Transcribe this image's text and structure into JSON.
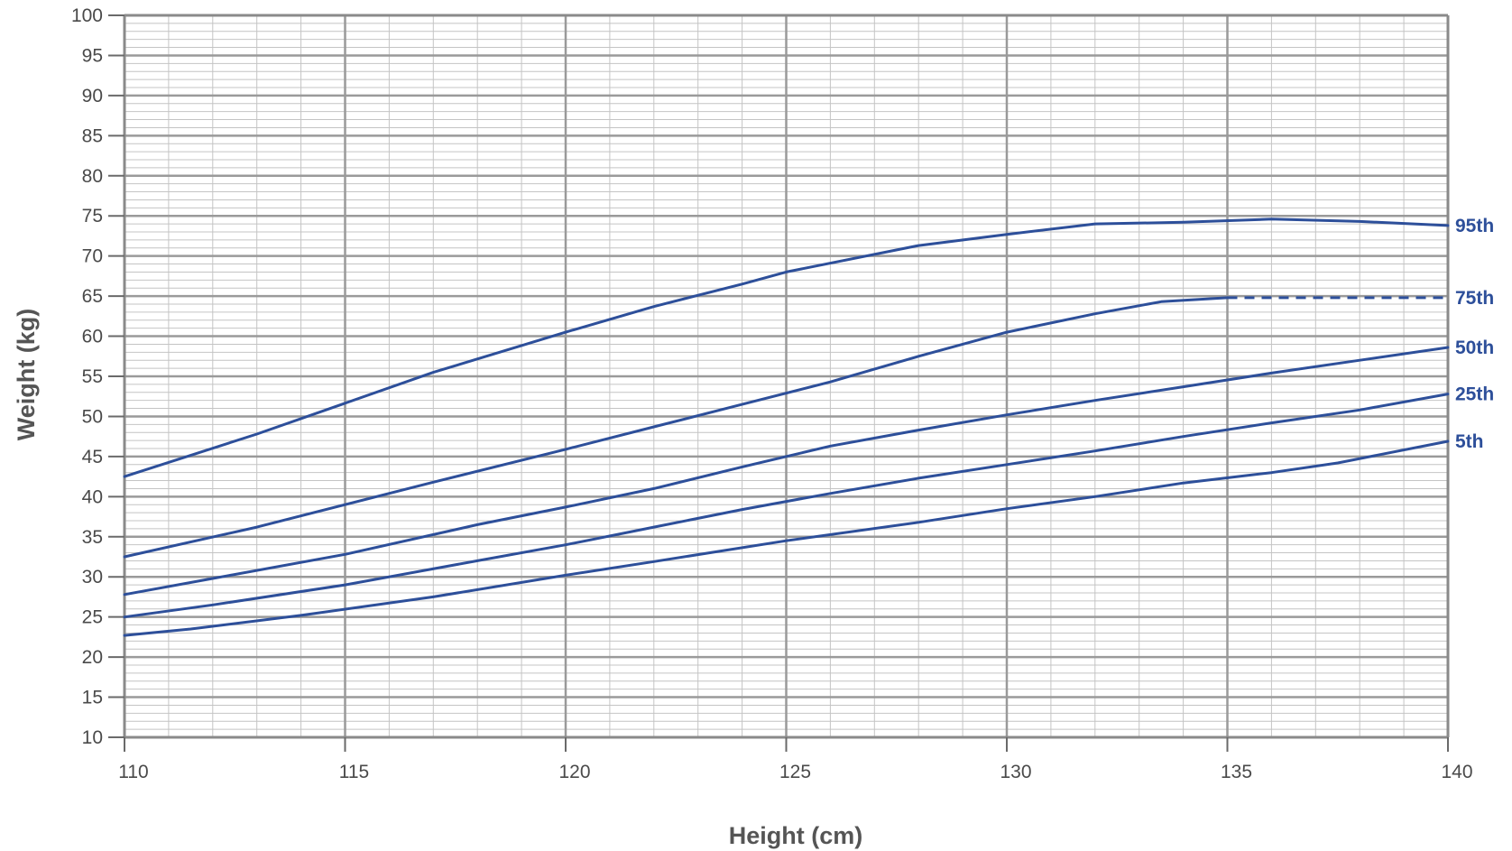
{
  "chart_data": {
    "type": "line",
    "title": "",
    "xlabel": "Height (cm)",
    "ylabel": "Weight (kg)",
    "xlim": [
      110,
      140
    ],
    "ylim": [
      10,
      100
    ],
    "x_ticks": [
      110,
      115,
      120,
      125,
      130,
      135,
      140
    ],
    "y_ticks": [
      10,
      15,
      20,
      25,
      30,
      35,
      40,
      45,
      50,
      55,
      60,
      65,
      70,
      75,
      80,
      85,
      90,
      95,
      100
    ],
    "x_minor_step": 1,
    "y_minor_step": 1,
    "grid": true,
    "legend": "end-of-line labels",
    "series_color": "#2d4f9a",
    "grid_major_color": "#9a9a9a",
    "grid_minor_color": "#c4c4c4",
    "series": [
      {
        "name": "95th",
        "points": [
          [
            110,
            42.5
          ],
          [
            113,
            47.8
          ],
          [
            117,
            55.5
          ],
          [
            120,
            60.5
          ],
          [
            122,
            63.7
          ],
          [
            124,
            66.5
          ],
          [
            125,
            68.0
          ],
          [
            128,
            71.3
          ],
          [
            130,
            72.7
          ],
          [
            132,
            74.0
          ],
          [
            134,
            74.2
          ],
          [
            136,
            74.6
          ],
          [
            138,
            74.3
          ],
          [
            140,
            73.8
          ]
        ],
        "dashed_from": null
      },
      {
        "name": "75th",
        "points": [
          [
            110,
            32.5
          ],
          [
            113,
            36.2
          ],
          [
            117,
            41.8
          ],
          [
            120,
            45.9
          ],
          [
            122,
            48.7
          ],
          [
            124,
            51.5
          ],
          [
            126,
            54.3
          ],
          [
            128,
            57.5
          ],
          [
            130,
            60.5
          ],
          [
            132,
            62.8
          ],
          [
            133.5,
            64.3
          ],
          [
            135,
            64.8
          ],
          [
            140,
            64.8
          ]
        ],
        "dashed_from": 135
      },
      {
        "name": "50th",
        "points": [
          [
            110,
            27.8
          ],
          [
            112,
            29.8
          ],
          [
            115,
            32.8
          ],
          [
            118,
            36.5
          ],
          [
            120,
            38.7
          ],
          [
            122,
            41.0
          ],
          [
            124,
            43.7
          ],
          [
            126,
            46.3
          ],
          [
            128,
            48.3
          ],
          [
            130,
            50.2
          ],
          [
            132,
            52.0
          ],
          [
            134,
            53.7
          ],
          [
            136,
            55.4
          ],
          [
            138,
            57.0
          ],
          [
            140,
            58.6
          ]
        ],
        "dashed_from": null
      },
      {
        "name": "25th",
        "points": [
          [
            110,
            25.0
          ],
          [
            112,
            26.5
          ],
          [
            115,
            29.0
          ],
          [
            118,
            32.0
          ],
          [
            120,
            34.0
          ],
          [
            122,
            36.2
          ],
          [
            124,
            38.4
          ],
          [
            126,
            40.4
          ],
          [
            128,
            42.3
          ],
          [
            130,
            44.0
          ],
          [
            132,
            45.7
          ],
          [
            134,
            47.5
          ],
          [
            136,
            49.2
          ],
          [
            138,
            50.8
          ],
          [
            140,
            52.8
          ]
        ],
        "dashed_from": null
      },
      {
        "name": "5th",
        "points": [
          [
            110,
            22.7
          ],
          [
            111.5,
            23.5
          ],
          [
            114,
            25.2
          ],
          [
            117,
            27.5
          ],
          [
            120,
            30.2
          ],
          [
            122,
            31.9
          ],
          [
            125,
            34.5
          ],
          [
            128,
            36.8
          ],
          [
            130,
            38.5
          ],
          [
            132,
            40.0
          ],
          [
            134,
            41.7
          ],
          [
            136,
            43.0
          ],
          [
            137.5,
            44.2
          ],
          [
            140,
            46.9
          ]
        ],
        "dashed_from": null
      }
    ]
  }
}
